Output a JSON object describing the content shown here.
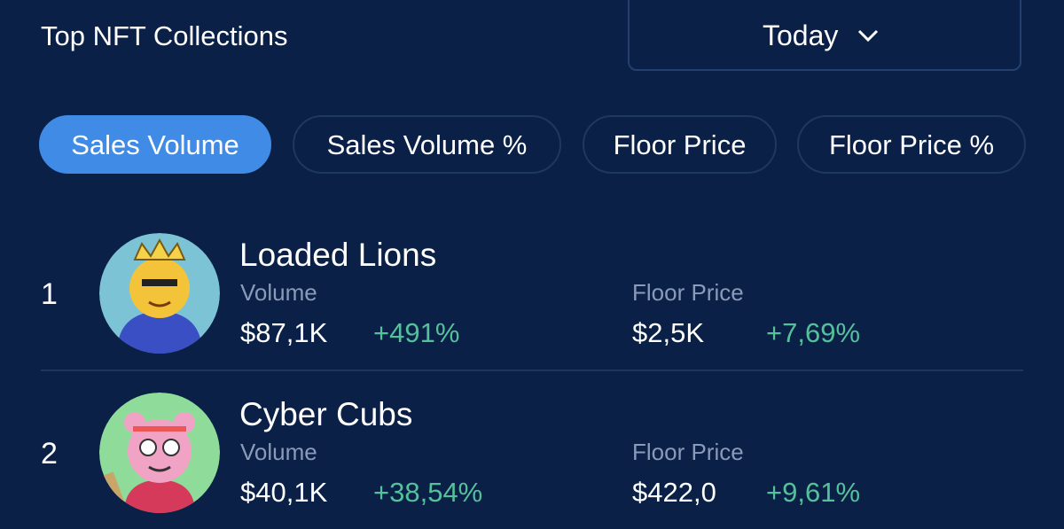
{
  "header": {
    "title": "Top NFT Collections",
    "period": "Today"
  },
  "tabs": [
    "Sales Volume",
    "Sales Volume %",
    "Floor Price",
    "Floor Price %"
  ],
  "rows": [
    {
      "rank": "1",
      "name": "Loaded Lions",
      "volume_label": "Volume",
      "volume": "$87,1K",
      "volume_change": "+491%",
      "floor_label": "Floor Price",
      "floor": "$2,5K",
      "floor_change": "+7,69%"
    },
    {
      "rank": "2",
      "name": "Cyber Cubs",
      "volume_label": "Volume",
      "volume": "$40,1K",
      "volume_change": "+38,54%",
      "floor_label": "Floor Price",
      "floor": "$422,0",
      "floor_change": "+9,61%"
    }
  ]
}
